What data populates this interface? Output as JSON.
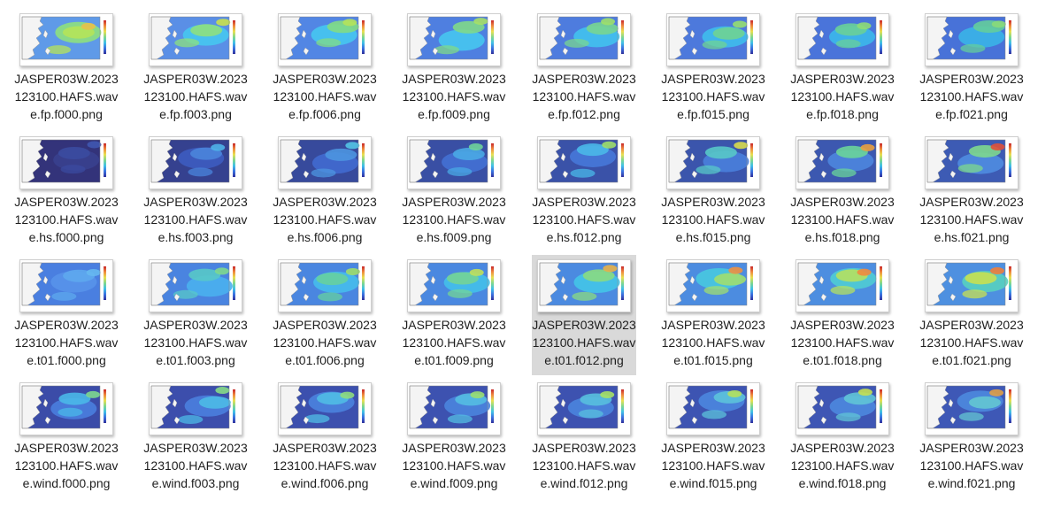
{
  "view": "file-explorer-large-icons",
  "selected_file": "JASPER03W.2023123100.HAFS.wave.t01.f012.png",
  "files": [
    {
      "name": "JASPER03W.2023123100.HAFS.wave.fp.f000.png",
      "thumbnail": "wave-period-map",
      "palette": [
        "#5f9ae8",
        "#8ee07e",
        "#b5e35a",
        "#e8c04a"
      ]
    },
    {
      "name": "JASPER03W.2023123100.HAFS.wave.fp.f003.png",
      "thumbnail": "wave-period-map",
      "palette": [
        "#5a8fe6",
        "#46c6f0",
        "#8ee07e",
        "#c9e04e"
      ]
    },
    {
      "name": "JASPER03W.2023123100.HAFS.wave.fp.f006.png",
      "thumbnail": "wave-period-map",
      "palette": [
        "#5286e4",
        "#46c6f0",
        "#82dc84",
        "#b5e35a"
      ]
    },
    {
      "name": "JASPER03W.2023123100.HAFS.wave.fp.f009.png",
      "thumbnail": "wave-period-map",
      "palette": [
        "#4f7fe0",
        "#46c6f0",
        "#7fd98a",
        "#a6e066"
      ]
    },
    {
      "name": "JASPER03W.2023123100.HAFS.wave.fp.f012.png",
      "thumbnail": "wave-period-map",
      "palette": [
        "#4e7cde",
        "#43c2ee",
        "#79d690",
        "#9fe06a"
      ]
    },
    {
      "name": "JASPER03W.2023123100.HAFS.wave.fp.f015.png",
      "thumbnail": "wave-period-map",
      "palette": [
        "#4d79dc",
        "#3fbdec",
        "#6fd394",
        "#97de70"
      ]
    },
    {
      "name": "JASPER03W.2023123100.HAFS.wave.fp.f018.png",
      "thumbnail": "wave-period-map",
      "palette": [
        "#4a74da",
        "#3cb8ea",
        "#69d098",
        "#8edc76"
      ]
    },
    {
      "name": "JASPER03W.2023123100.HAFS.wave.fp.f021.png",
      "thumbnail": "wave-period-map",
      "palette": [
        "#4872d8",
        "#3ab4e8",
        "#64cd9c",
        "#89da7a"
      ]
    },
    {
      "name": "JASPER03W.2023123100.HAFS.wave.hs.f000.png",
      "thumbnail": "wave-height-map",
      "palette": [
        "#33337a",
        "#38408e",
        "#3b4ba0",
        "#3f56b0"
      ]
    },
    {
      "name": "JASPER03W.2023123100.HAFS.wave.hs.f003.png",
      "thumbnail": "wave-height-map",
      "palette": [
        "#35418f",
        "#3d5cc0",
        "#4a84dc",
        "#4fb3e8"
      ]
    },
    {
      "name": "JASPER03W.2023123100.HAFS.wave.hs.f006.png",
      "thumbnail": "wave-height-map",
      "palette": [
        "#374a9c",
        "#416ad0",
        "#4d95e0",
        "#53c4e6"
      ]
    },
    {
      "name": "JASPER03W.2023123100.HAFS.wave.hs.f009.png",
      "thumbnail": "wave-height-map",
      "palette": [
        "#394fa4",
        "#4470d4",
        "#4aa8e4",
        "#6fd39a"
      ]
    },
    {
      "name": "JASPER03W.2023123100.HAFS.wave.hs.f012.png",
      "thumbnail": "wave-height-map",
      "palette": [
        "#3a52a8",
        "#4778d8",
        "#4ab8e8",
        "#9ede6a"
      ]
    },
    {
      "name": "JASPER03W.2023123100.HAFS.wave.hs.f015.png",
      "thumbnail": "wave-height-map",
      "palette": [
        "#3b55ac",
        "#4a7fdc",
        "#58c8c8",
        "#d8dc4e"
      ]
    },
    {
      "name": "JASPER03W.2023123100.HAFS.wave.hs.f018.png",
      "thumbnail": "wave-height-map",
      "palette": [
        "#3c58b0",
        "#4c86de",
        "#6ad49a",
        "#e8a040"
      ]
    },
    {
      "name": "JASPER03W.2023123100.HAFS.wave.hs.f021.png",
      "thumbnail": "wave-height-map",
      "palette": [
        "#3d5bb4",
        "#4f8ce0",
        "#7ed88e",
        "#e0503a"
      ]
    },
    {
      "name": "JASPER03W.2023123100.HAFS.wave.t01.f000.png",
      "thumbnail": "mean-period-map",
      "palette": [
        "#4a7fe0",
        "#5894ea",
        "#5ea8ee",
        "#66b8f0"
      ]
    },
    {
      "name": "JASPER03W.2023123100.HAFS.wave.t01.f003.png",
      "thumbnail": "mean-period-map",
      "palette": [
        "#4a84e0",
        "#4ab0ee",
        "#58c8c8",
        "#7ed88e"
      ]
    },
    {
      "name": "JASPER03W.2023123100.HAFS.wave.t01.f006.png",
      "thumbnail": "mean-period-map",
      "palette": [
        "#4a86e0",
        "#46bcec",
        "#66d0a0",
        "#9ede6a"
      ]
    },
    {
      "name": "JASPER03W.2023123100.HAFS.wave.t01.f009.png",
      "thumbnail": "mean-period-map",
      "palette": [
        "#4a88e0",
        "#44c0ea",
        "#74d496",
        "#c0e05a"
      ]
    },
    {
      "name": "JASPER03W.2023123100.HAFS.wave.t01.f012.png",
      "thumbnail": "mean-period-map",
      "palette": [
        "#4b8ae0",
        "#44c4e8",
        "#8ada82",
        "#e8b048"
      ]
    },
    {
      "name": "JASPER03W.2023123100.HAFS.wave.t01.f015.png",
      "thumbnail": "mean-period-map",
      "palette": [
        "#4c8ce0",
        "#48c8e0",
        "#a0de70",
        "#ee9040"
      ]
    },
    {
      "name": "JASPER03W.2023123100.HAFS.wave.t01.f018.png",
      "thumbnail": "mean-period-map",
      "palette": [
        "#4d8ee0",
        "#50ccd4",
        "#b4e060",
        "#f08a3e"
      ]
    },
    {
      "name": "JASPER03W.2023123100.HAFS.wave.t01.f021.png",
      "thumbnail": "mean-period-map",
      "palette": [
        "#4e90e0",
        "#58d0c0",
        "#c8e052",
        "#f07e3a"
      ]
    },
    {
      "name": "JASPER03W.2023123100.HAFS.wave.wind.f000.png",
      "thumbnail": "wind-speed-map",
      "palette": [
        "#3b4ca8",
        "#4a7ede",
        "#4ab8e8",
        "#7ed88e"
      ]
    },
    {
      "name": "JASPER03W.2023123100.HAFS.wave.wind.f003.png",
      "thumbnail": "wind-speed-map",
      "palette": [
        "#3c4eac",
        "#4a80de",
        "#4cbae6",
        "#86da86"
      ]
    },
    {
      "name": "JASPER03W.2023123100.HAFS.wave.wind.f006.png",
      "thumbnail": "wind-speed-map",
      "palette": [
        "#3c50ae",
        "#4a82de",
        "#50bce4",
        "#8edc7e"
      ]
    },
    {
      "name": "JASPER03W.2023123100.HAFS.wave.wind.f009.png",
      "thumbnail": "wind-speed-map",
      "palette": [
        "#3d52b0",
        "#4a84de",
        "#54bee2",
        "#9ade72"
      ]
    },
    {
      "name": "JASPER03W.2023123100.HAFS.wave.wind.f012.png",
      "thumbnail": "wind-speed-map",
      "palette": [
        "#3d52b0",
        "#4a84de",
        "#58c0de",
        "#a6e066"
      ]
    },
    {
      "name": "JASPER03W.2023123100.HAFS.wave.wind.f015.png",
      "thumbnail": "wind-speed-map",
      "palette": [
        "#3d54b2",
        "#4b86de",
        "#5cc2da",
        "#b2e05e"
      ]
    },
    {
      "name": "JASPER03W.2023123100.HAFS.wave.wind.f018.png",
      "thumbnail": "wind-speed-map",
      "palette": [
        "#3e56b4",
        "#4c88de",
        "#60c4d6",
        "#c4e052"
      ]
    },
    {
      "name": "JASPER03W.2023123100.HAFS.wave.wind.f021.png",
      "thumbnail": "wind-speed-map",
      "palette": [
        "#3e58b6",
        "#4d8ade",
        "#64c6d2",
        "#e0a046"
      ]
    }
  ]
}
